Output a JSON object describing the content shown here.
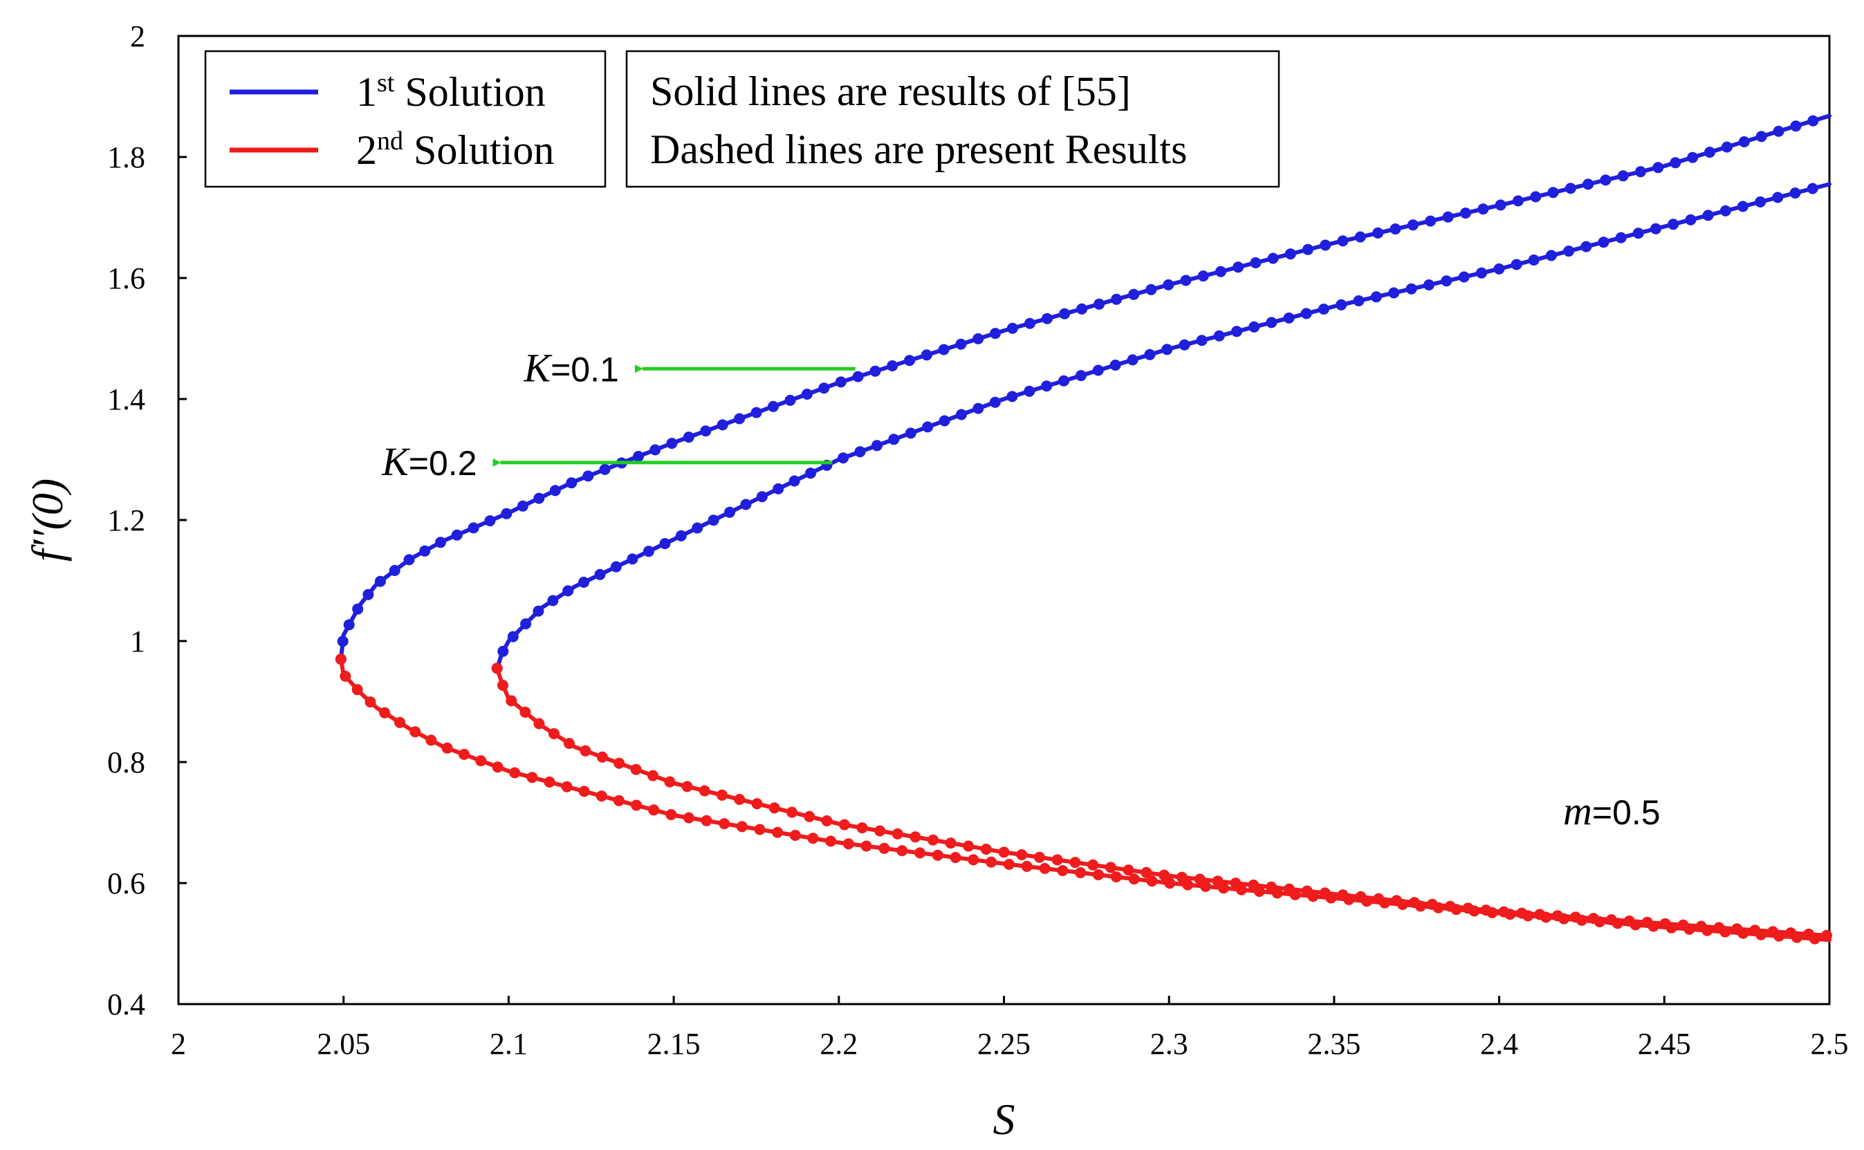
{
  "chart_data": {
    "type": "line",
    "xlabel": "S",
    "ylabel": "f′′(0)",
    "xlim": [
      2,
      2.5
    ],
    "ylim": [
      0.4,
      2
    ],
    "xticks": [
      "2",
      "2.05",
      "2.1",
      "2.15",
      "2.2",
      "2.25",
      "2.3",
      "2.35",
      "2.4",
      "2.45",
      "2.5"
    ],
    "yticks": [
      "0.4",
      "0.6",
      "0.8",
      "1",
      "1.2",
      "1.4",
      "1.6",
      "1.8",
      "2"
    ],
    "grid": false,
    "legend": {
      "placement": "top-left",
      "entries": [
        {
          "base": "1",
          "sup": "st",
          "rest": " Solution",
          "color": "#1f1fdc"
        },
        {
          "base": "2",
          "sup": "nd",
          "rest": " Solution",
          "color": "#ee1c1c"
        }
      ]
    },
    "note": {
      "line1": "Solid lines are results of [55]",
      "line2": "Dashed lines are present Results"
    },
    "annotations": [
      {
        "var": "K",
        "value": "=0.1",
        "arrow_from": [
          2.205,
          1.45
        ],
        "arrow_to": [
          2.138,
          1.45
        ],
        "color": "#22cc22"
      },
      {
        "var": "K",
        "value": "=0.2",
        "arrow_from": [
          2.198,
          1.295
        ],
        "arrow_to": [
          2.095,
          1.295
        ],
        "color": "#22cc22"
      }
    ],
    "parameter_label": {
      "var": "m",
      "value": "=0.5"
    },
    "series": [
      {
        "name": "1st Solution (K=0.1)",
        "color": "#1f1fdc",
        "points": [
          [
            2.0492,
            0.97
          ],
          [
            2.05,
            1.01
          ],
          [
            2.055,
            1.06
          ],
          [
            2.06,
            1.094
          ],
          [
            2.07,
            1.135
          ],
          [
            2.08,
            1.165
          ],
          [
            2.1,
            1.212
          ],
          [
            2.12,
            1.264
          ],
          [
            2.15,
            1.328
          ],
          [
            2.2,
            1.427
          ],
          [
            2.25,
            1.513
          ],
          [
            2.3,
            1.589
          ],
          [
            2.35,
            1.658
          ],
          [
            2.4,
            1.72
          ],
          [
            2.45,
            1.785
          ],
          [
            2.5,
            1.868
          ]
        ]
      },
      {
        "name": "2nd Solution (K=0.1)",
        "color": "#ee1c1c",
        "points": [
          [
            2.0492,
            0.97
          ],
          [
            2.05,
            0.945
          ],
          [
            2.055,
            0.915
          ],
          [
            2.06,
            0.89
          ],
          [
            2.07,
            0.855
          ],
          [
            2.08,
            0.826
          ],
          [
            2.1,
            0.785
          ],
          [
            2.15,
            0.712
          ],
          [
            2.2,
            0.667
          ],
          [
            2.25,
            0.632
          ],
          [
            2.3,
            0.6
          ],
          [
            2.35,
            0.575
          ],
          [
            2.4,
            0.55
          ],
          [
            2.45,
            0.527
          ],
          [
            2.5,
            0.506
          ]
        ]
      },
      {
        "name": "1st Solution (K=0.2)",
        "color": "#1f1fdc",
        "points": [
          [
            2.0965,
            0.955
          ],
          [
            2.098,
            0.98
          ],
          [
            2.1,
            1.0
          ],
          [
            2.11,
            1.055
          ],
          [
            2.12,
            1.09
          ],
          [
            2.15,
            1.168
          ],
          [
            2.2,
            1.3
          ],
          [
            2.25,
            1.4
          ],
          [
            2.3,
            1.483
          ],
          [
            2.35,
            1.553
          ],
          [
            2.4,
            1.615
          ],
          [
            2.45,
            1.685
          ],
          [
            2.5,
            1.755
          ]
        ]
      },
      {
        "name": "2nd Solution (K=0.2)",
        "color": "#ee1c1c",
        "points": [
          [
            2.0965,
            0.955
          ],
          [
            2.098,
            0.93
          ],
          [
            2.1,
            0.905
          ],
          [
            2.11,
            0.86
          ],
          [
            2.12,
            0.825
          ],
          [
            2.15,
            0.765
          ],
          [
            2.2,
            0.698
          ],
          [
            2.25,
            0.651
          ],
          [
            2.3,
            0.612
          ],
          [
            2.35,
            0.582
          ],
          [
            2.4,
            0.553
          ],
          [
            2.45,
            0.533
          ],
          [
            2.5,
            0.513
          ]
        ]
      }
    ]
  }
}
